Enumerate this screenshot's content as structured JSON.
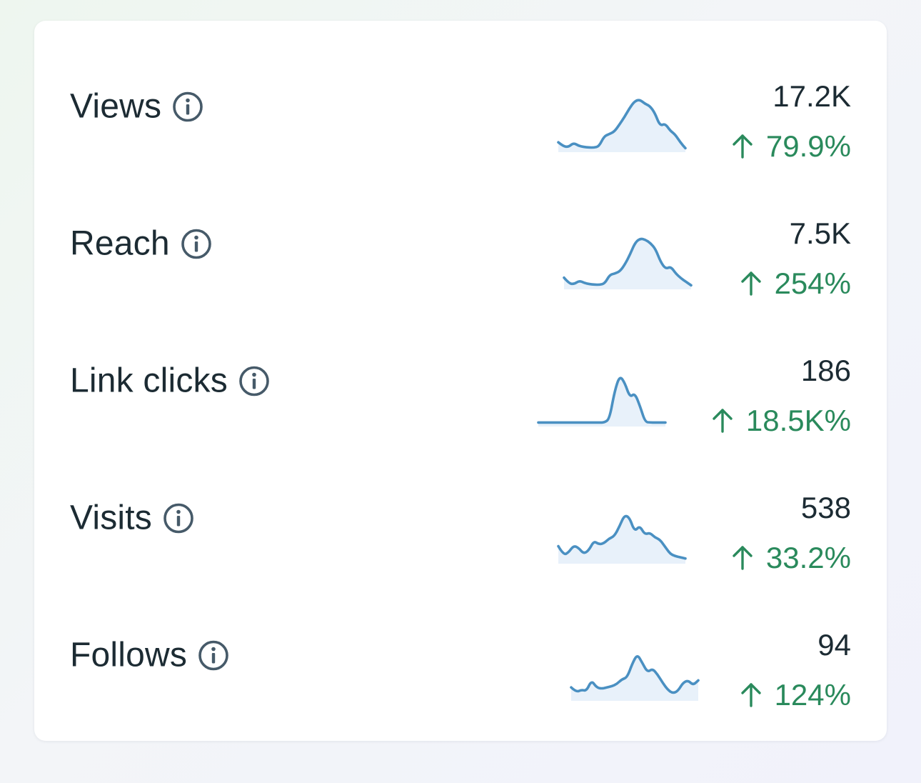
{
  "colors": {
    "text": "#1c2b33",
    "positive": "#2a8a5c",
    "spark_line": "#4a90c2",
    "spark_fill": "#e8f1fa",
    "icon": "#465a69"
  },
  "metrics": [
    {
      "id": "views",
      "label": "Views",
      "info_icon": "info-circle-icon",
      "value": "17.2K",
      "change": "79.9%",
      "direction_icon": "arrow-up-icon",
      "trend": [
        0.12,
        0.05,
        0.04,
        0.11,
        0.06,
        0.04,
        0.03,
        0.03,
        0.05,
        0.22,
        0.26,
        0.3,
        0.42,
        0.55,
        0.7,
        0.82,
        0.85,
        0.78,
        0.74,
        0.62,
        0.4,
        0.44,
        0.32,
        0.25,
        0.12,
        0.02
      ]
    },
    {
      "id": "reach",
      "label": "Reach",
      "info_icon": "info-circle-icon",
      "value": "7.5K",
      "change": "254%",
      "direction_icon": "arrow-up-icon",
      "trend": [
        0.15,
        0.05,
        0.04,
        0.1,
        0.06,
        0.04,
        0.03,
        0.03,
        0.05,
        0.2,
        0.22,
        0.26,
        0.38,
        0.55,
        0.75,
        0.82,
        0.8,
        0.74,
        0.64,
        0.42,
        0.3,
        0.34,
        0.22,
        0.14,
        0.08,
        0.02
      ]
    },
    {
      "id": "link-clicks",
      "label": "Link clicks",
      "info_icon": "info-circle-icon",
      "value": "186",
      "change": "18.5K%",
      "direction_icon": "arrow-up-icon",
      "trend": [
        0.02,
        0.02,
        0.02,
        0.02,
        0.02,
        0.02,
        0.02,
        0.02,
        0.02,
        0.02,
        0.02,
        0.02,
        0.02,
        0.02,
        0.08,
        0.55,
        0.82,
        0.7,
        0.45,
        0.52,
        0.3,
        0.03,
        0.02,
        0.02,
        0.02,
        0.02
      ]
    },
    {
      "id": "visits",
      "label": "Visits",
      "info_icon": "info-circle-icon",
      "value": "538",
      "change": "33.2%",
      "direction_icon": "arrow-up-icon",
      "trend": [
        0.25,
        0.1,
        0.14,
        0.26,
        0.22,
        0.12,
        0.18,
        0.34,
        0.28,
        0.3,
        0.38,
        0.42,
        0.58,
        0.78,
        0.74,
        0.5,
        0.6,
        0.45,
        0.48,
        0.4,
        0.36,
        0.24,
        0.12,
        0.08,
        0.06,
        0.04
      ]
    },
    {
      "id": "follows",
      "label": "Follows",
      "info_icon": "info-circle-icon",
      "value": "94",
      "change": "124%",
      "direction_icon": "arrow-up-icon",
      "trend": [
        0.18,
        0.1,
        0.14,
        0.12,
        0.3,
        0.18,
        0.16,
        0.18,
        0.2,
        0.24,
        0.32,
        0.35,
        0.58,
        0.75,
        0.6,
        0.44,
        0.5,
        0.4,
        0.26,
        0.14,
        0.08,
        0.12,
        0.26,
        0.3,
        0.22,
        0.3
      ]
    }
  ]
}
